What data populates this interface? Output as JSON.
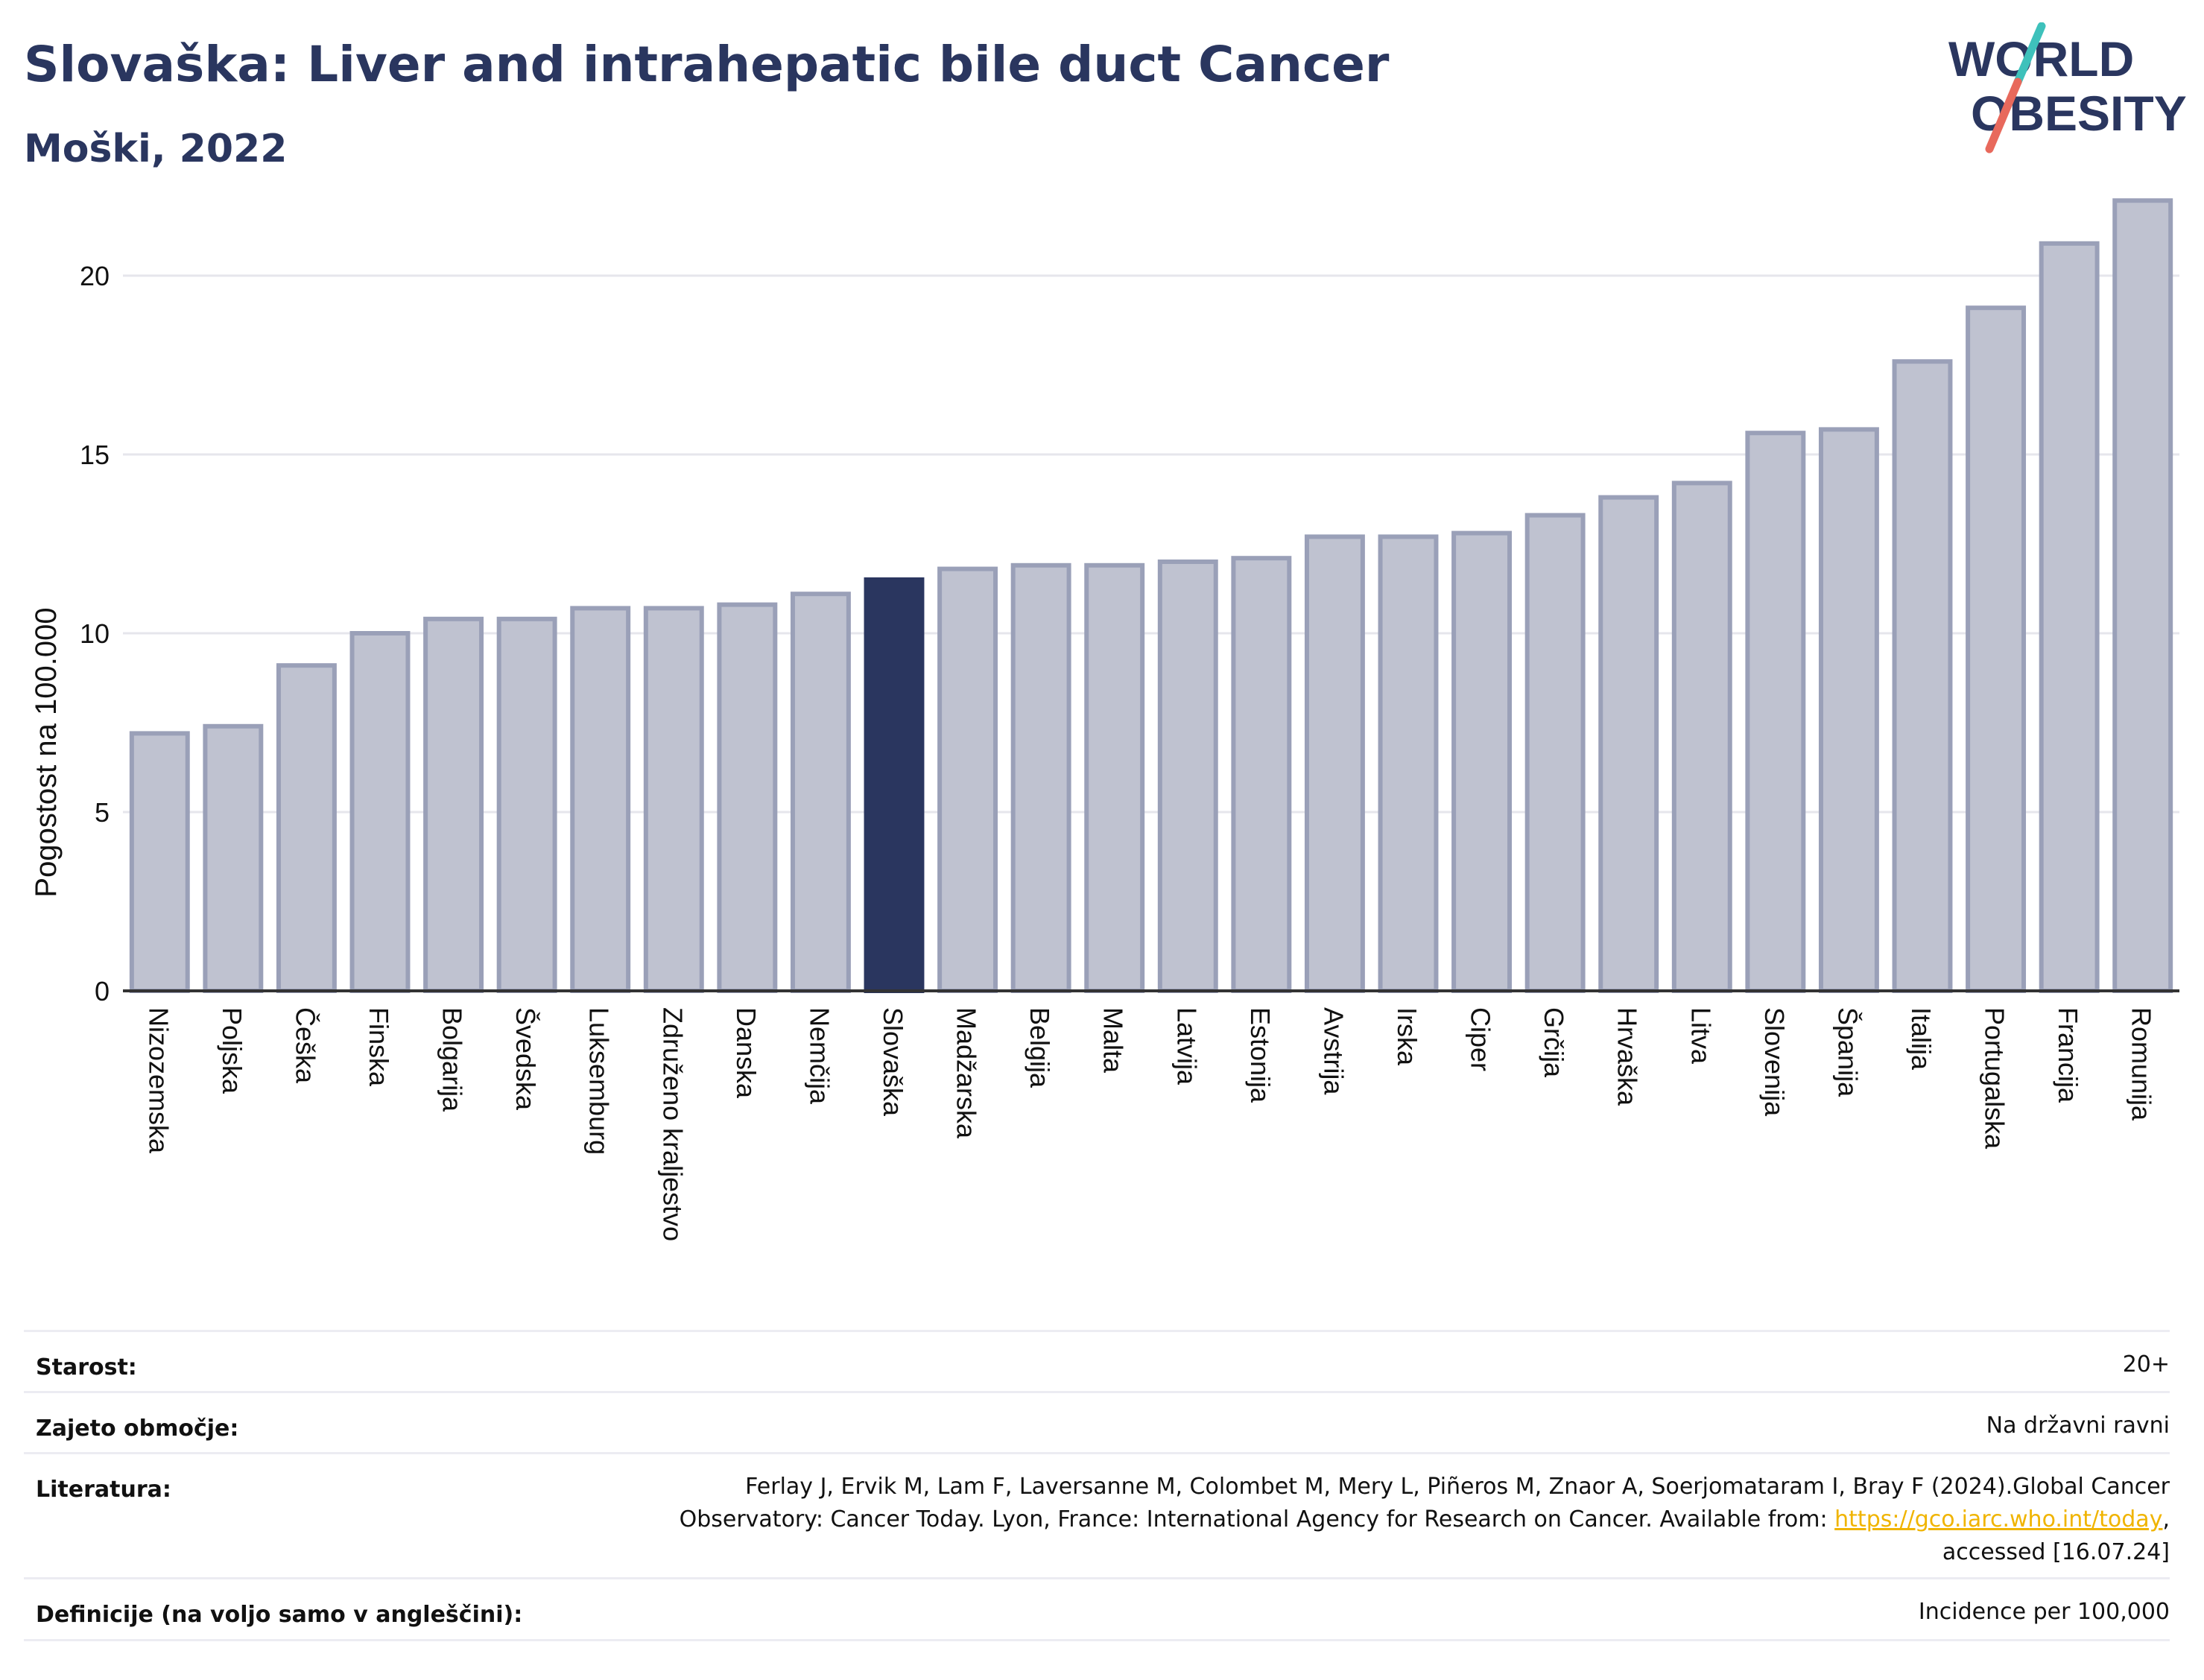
{
  "header": {
    "title": "Slovaška: Liver and intrahepatic bile duct Cancer",
    "subtitle": "Moški, 2022"
  },
  "logo": {
    "line1": "WORLD",
    "line2": "OBESITY",
    "slash_colors": [
      "#e8695c",
      "#3ec1bb"
    ],
    "text_color": "#2a365f"
  },
  "colors": {
    "bar_default": "#bfc2d0",
    "bar_default_stroke": "#9aa0b8",
    "bar_highlight": "#2a365f",
    "grid": "#e6e6ec",
    "axis": "#333333"
  },
  "chart_data": {
    "type": "bar",
    "title": "Slovaška: Liver and intrahepatic bile duct Cancer",
    "subtitle": "Moški, 2022",
    "ylabel": "Pogostost na 100.000",
    "xlabel": "",
    "ylim": [
      0,
      22.5
    ],
    "yticks": [
      0,
      5,
      10,
      15,
      20
    ],
    "grid": true,
    "highlight": "Slovaška",
    "categories": [
      "Nizozemska",
      "Poljska",
      "Češka",
      "Finska",
      "Bolgarija",
      "Švedska",
      "Luksemburg",
      "Združeno kraljestvo",
      "Danska",
      "Nemčija",
      "Slovaška",
      "Madžarska",
      "Belgija",
      "Malta",
      "Latvija",
      "Estonija",
      "Avstrija",
      "Irska",
      "Ciper",
      "Grčija",
      "Hrvaška",
      "Litva",
      "Slovenija",
      "Španija",
      "Italija",
      "Portugalska",
      "Francija",
      "Romunija"
    ],
    "values": [
      7.2,
      7.4,
      9.1,
      10.0,
      10.4,
      10.4,
      10.7,
      10.7,
      10.8,
      11.1,
      11.5,
      11.8,
      11.9,
      11.9,
      12.0,
      12.1,
      12.7,
      12.7,
      12.8,
      13.3,
      13.8,
      14.2,
      15.6,
      15.7,
      17.6,
      19.1,
      20.9,
      22.1
    ]
  },
  "info": {
    "age_label": "Starost:",
    "age_value": "20+",
    "coverage_label": "Zajeto območje:",
    "coverage_value": "Na državni ravni",
    "references_label": "Literatura:",
    "references_line1": "Ferlay J, Ervik M, Lam F, Laversanne M, Colombet M, Mery L, Piñeros M, Znaor A, Soerjomataram I, Bray F (2024).Global Cancer",
    "references_line2_pre": "Observatory: Cancer Today. Lyon, France: International Agency for Research on Cancer. Available from: ",
    "references_link": "https://gco.iarc.who.int/today",
    "references_line2_post": ",",
    "references_line3": "accessed [16.07.24]",
    "definitions_label": "Definicije (na voljo samo v angleščini):",
    "definitions_value": "Incidence per 100,000"
  }
}
